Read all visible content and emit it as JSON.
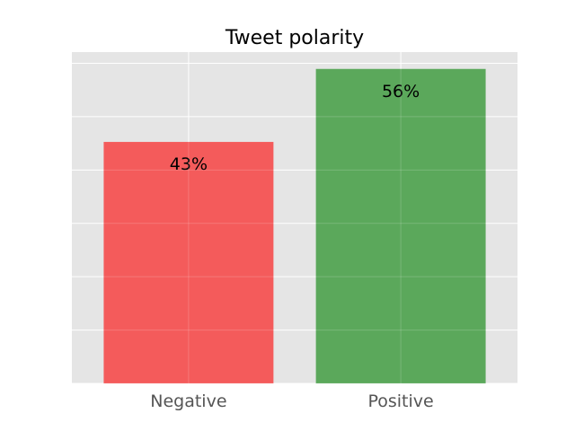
{
  "chart_data": {
    "type": "bar",
    "title": "Tweet polarity",
    "categories": [
      "Negative",
      "Positive"
    ],
    "values": [
      43,
      56
    ],
    "value_labels": [
      "43%",
      "56%"
    ],
    "colors": [
      "#f45b5b",
      "#5ba85b"
    ],
    "xlabel": "",
    "ylabel": "",
    "ylim": [
      0,
      59
    ],
    "y_gridlines": [
      0,
      9.5,
      19,
      28.5,
      38,
      47.5,
      57
    ],
    "grid": true,
    "background": "#e5e5e5",
    "grid_color": "#ffffff"
  }
}
